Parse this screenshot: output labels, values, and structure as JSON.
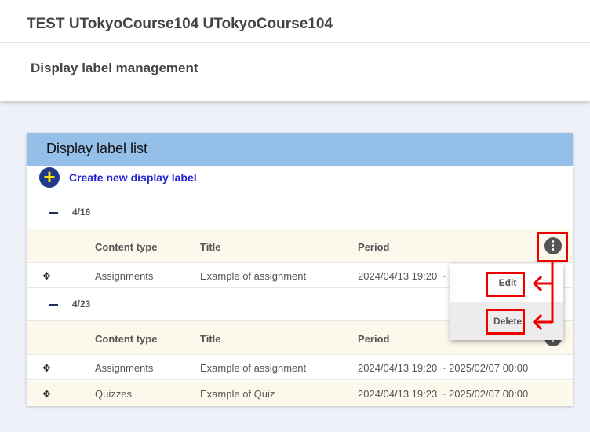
{
  "header": {
    "course_title": "TEST UTokyoCourse104 UTokyoCourse104",
    "page_title": "Display label management"
  },
  "card": {
    "title": "Display label list",
    "create_label": "Create new display label"
  },
  "columns": [
    "Content type",
    "Title",
    "Period"
  ],
  "groups": [
    {
      "label": "4/16",
      "rows": [
        {
          "type": "Assignments",
          "title": "Example of assignment",
          "period": "2024/04/13 19:20 ~"
        }
      ]
    },
    {
      "label": "4/23",
      "rows": [
        {
          "type": "Assignments",
          "title": "Example of assignment",
          "period": "2024/04/13 19:20 ~ 2025/02/07 00:00"
        },
        {
          "type": "Quizzes",
          "title": "Example of Quiz",
          "period": "2024/04/13 19:23 ~ 2025/02/07 00:00"
        }
      ]
    }
  ],
  "menu": {
    "edit": "Edit",
    "delete": "Delete"
  },
  "icons": {
    "move": "✥",
    "kebab": "⋮",
    "plus": "+"
  },
  "colors": {
    "card_header": "#93bfe8",
    "annotation": "#e00000",
    "link": "#2222cc"
  }
}
